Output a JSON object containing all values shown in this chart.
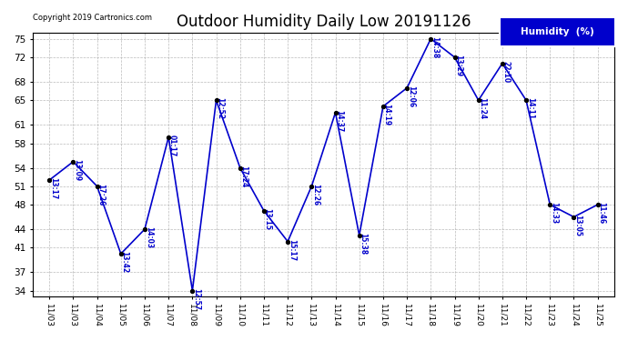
{
  "title": "Outdoor Humidity Daily Low 20191126",
  "copyright": "Copyright 2019 Cartronics.com",
  "legend_label": "Humidity  (%)",
  "x_labels": [
    "11/03",
    "11/03",
    "11/04",
    "11/05",
    "11/06",
    "11/07",
    "11/08",
    "11/09",
    "11/10",
    "11/11",
    "11/12",
    "11/13",
    "11/14",
    "11/15",
    "11/16",
    "11/17",
    "11/18",
    "11/19",
    "11/20",
    "11/21",
    "11/22",
    "11/23",
    "11/24",
    "11/25"
  ],
  "point_labels": [
    "13:17",
    "13:09",
    "17:26",
    "13:42",
    "14:03",
    "01:17",
    "12:57",
    "12:52",
    "17:24",
    "13:15",
    "15:17",
    "12:26",
    "14:37",
    "15:38",
    "14:19",
    "12:06",
    "14:38",
    "13:29",
    "11:24",
    "22:10",
    "14:11",
    "14:33",
    "13:05",
    "11:46"
  ],
  "y_values": [
    52,
    55,
    51,
    40,
    44,
    59,
    34,
    65,
    54,
    47,
    42,
    51,
    63,
    43,
    64,
    67,
    75,
    72,
    65,
    71,
    65,
    48,
    46,
    48
  ],
  "yticks": [
    34,
    37,
    41,
    44,
    48,
    51,
    54,
    58,
    61,
    65,
    68,
    72,
    75
  ],
  "line_color": "#0000CC",
  "marker_color": "#000000",
  "bg_color": "#FFFFFF",
  "grid_color": "#AAAAAA",
  "label_color": "#0000CC",
  "copyright_color": "#000000",
  "legend_bg": "#0000CC",
  "legend_text_color": "#FFFFFF",
  "title_fontsize": 12,
  "annotation_fontsize": 5.5,
  "tick_fontsize": 6.5,
  "ytick_fontsize": 7.5
}
